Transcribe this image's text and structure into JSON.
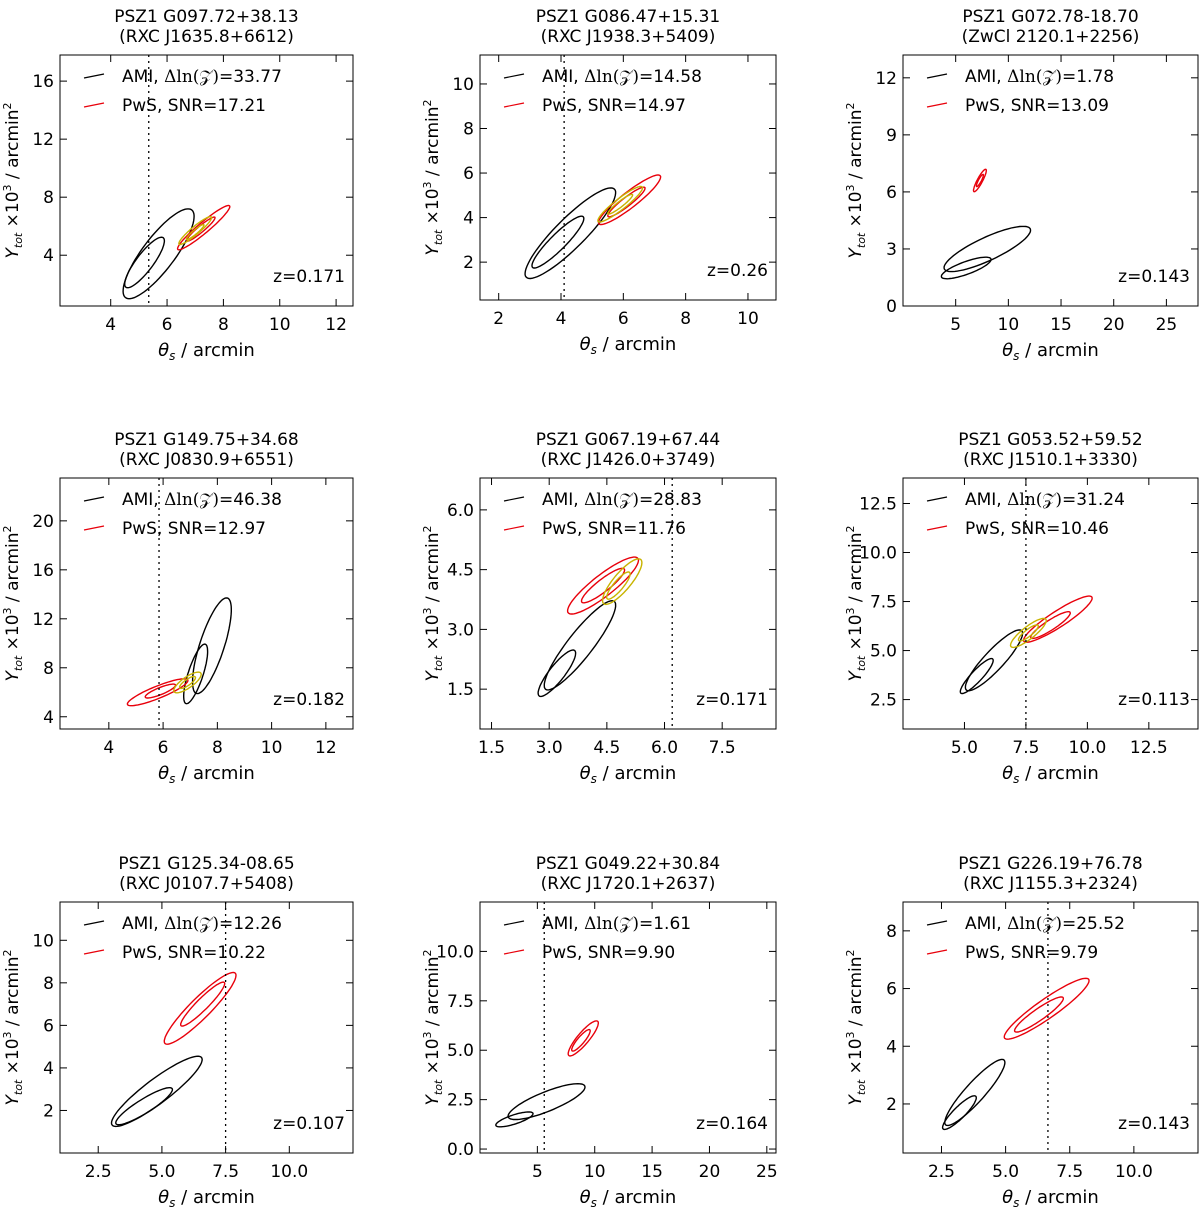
{
  "figure_caption": "",
  "chart_data": [
    {
      "type": "contour",
      "title": "PSZ1 G097.72+38.13",
      "subtitle": "(RXC J1635.8+6612)",
      "xlabel": "θs / arcmin",
      "ylabel_main": "Y",
      "ylabel_sub": "tot",
      "ylabel_rest": " ×10",
      "ylabel_exp": "3",
      "ylabel_units": " / arcmin",
      "ylabel_units_exp": "2",
      "xlim": [
        2.2,
        12.6
      ],
      "ylim": [
        0.5,
        17.8
      ],
      "xticks": [
        4,
        6,
        8,
        10,
        12
      ],
      "xtick_labels": [
        "4",
        "6",
        "8",
        "10",
        "12"
      ],
      "yticks": [
        4,
        8,
        12,
        16
      ],
      "ytick_labels": [
        "4",
        "8",
        "12",
        "16"
      ],
      "vline": 5.35,
      "legend": {
        "ami_label": "AMI, ",
        "ami_stat": "Δln(𝒵)",
        "ami_value": "=33.77",
        "pws_label": "PwS, SNR=17.21"
      },
      "redshift_label": "z=0.171",
      "contours": [
        {
          "color": "black",
          "cx": 5.7,
          "cy": 4.1,
          "a": 3.9,
          "b": 1.15,
          "angle": 53
        },
        {
          "color": "black",
          "cx": 5.2,
          "cy": 3.5,
          "a": 2.2,
          "b": 0.6,
          "angle": 53
        },
        {
          "color": "red",
          "cx": 7.3,
          "cy": 5.9,
          "a": 2.4,
          "b": 0.38,
          "angle": 40
        },
        {
          "color": "red",
          "cx": 7.2,
          "cy": 5.8,
          "a": 1.3,
          "b": 0.22,
          "angle": 40
        },
        {
          "color": "olive",
          "cx": 7.0,
          "cy": 5.7,
          "a": 1.5,
          "b": 0.28,
          "angle": 40
        },
        {
          "color": "olive",
          "cx": 7.0,
          "cy": 5.6,
          "a": 0.8,
          "b": 0.15,
          "angle": 40
        }
      ]
    },
    {
      "type": "contour",
      "title": "PSZ1 G086.47+15.31",
      "subtitle": "(RXC J1938.3+5409)",
      "xlabel": "θs / arcmin",
      "ylabel_main": "Y",
      "ylabel_sub": "tot",
      "ylabel_rest": " ×10",
      "ylabel_exp": "3",
      "ylabel_units": " / arcmin",
      "ylabel_units_exp": "2",
      "xlim": [
        1.4,
        10.9
      ],
      "ylim": [
        0.3,
        11.3
      ],
      "xticks": [
        2,
        4,
        6,
        8,
        10
      ],
      "xtick_labels": [
        "2",
        "4",
        "6",
        "8",
        "10"
      ],
      "yticks": [
        2,
        4,
        6,
        8,
        10
      ],
      "ytick_labels": [
        "2",
        "4",
        "6",
        "8",
        "10"
      ],
      "vline": 4.1,
      "legend": {
        "ami_label": "AMI, ",
        "ami_stat": "Δln(𝒵)",
        "ami_value": "=14.58",
        "pws_label": "PwS, SNR=14.97"
      },
      "redshift_label": "z=0.26",
      "contours": [
        {
          "color": "black",
          "cx": 4.3,
          "cy": 3.3,
          "a": 4.0,
          "b": 0.95,
          "angle": 45
        },
        {
          "color": "black",
          "cx": 3.9,
          "cy": 2.9,
          "a": 2.3,
          "b": 0.5,
          "angle": 45
        },
        {
          "color": "red",
          "cx": 6.2,
          "cy": 4.8,
          "a": 2.5,
          "b": 0.5,
          "angle": 38
        },
        {
          "color": "red",
          "cx": 6.1,
          "cy": 4.7,
          "a": 1.5,
          "b": 0.28,
          "angle": 38
        },
        {
          "color": "olive",
          "cx": 5.9,
          "cy": 4.6,
          "a": 1.8,
          "b": 0.35,
          "angle": 38
        },
        {
          "color": "olive",
          "cx": 5.9,
          "cy": 4.6,
          "a": 1.0,
          "b": 0.18,
          "angle": 38
        }
      ]
    },
    {
      "type": "contour",
      "title": "PSZ1 G072.78-18.70",
      "subtitle": "(ZwCl 2120.1+2256)",
      "xlabel": "θs / arcmin",
      "ylabel_main": "Y",
      "ylabel_sub": "tot",
      "ylabel_rest": " ×10",
      "ylabel_exp": "3",
      "ylabel_units": " / arcmin",
      "ylabel_units_exp": "2",
      "xlim": [
        0,
        28
      ],
      "ylim": [
        0,
        13.2
      ],
      "xticks": [
        5,
        10,
        15,
        20,
        25
      ],
      "xtick_labels": [
        "5",
        "10",
        "15",
        "20",
        "25"
      ],
      "yticks": [
        0,
        3,
        6,
        9,
        12
      ],
      "ytick_labels": [
        "0",
        "3",
        "6",
        "9",
        "12"
      ],
      "vline": null,
      "legend": {
        "ami_label": "AMI, ",
        "ami_stat": "Δln(𝒵)",
        "ami_value": "=1.78",
        "pws_label": "PwS, SNR=13.09"
      },
      "redshift_label": "z=0.143",
      "contours": [
        {
          "color": "black",
          "cx": 8.0,
          "cy": 3.0,
          "a": 9.0,
          "b": 2.2,
          "angle": 25
        },
        {
          "color": "black",
          "cx": 6.0,
          "cy": 2.0,
          "a": 5.0,
          "b": 1.2,
          "angle": 20
        },
        {
          "color": "red",
          "cx": 7.3,
          "cy": 6.6,
          "a": 2.4,
          "b": 0.5,
          "angle": 62
        },
        {
          "color": "red",
          "cx": 7.3,
          "cy": 6.6,
          "a": 1.3,
          "b": 0.28,
          "angle": 62
        }
      ]
    },
    {
      "type": "contour",
      "title": "PSZ1 G149.75+34.68",
      "subtitle": "(RXC J0830.9+6551)",
      "xlabel": "θs / arcmin",
      "ylabel_main": "Y",
      "ylabel_sub": "tot",
      "ylabel_rest": " ×10",
      "ylabel_exp": "3",
      "ylabel_units": " / arcmin",
      "ylabel_units_exp": "2",
      "xlim": [
        2.2,
        13.0
      ],
      "ylim": [
        3.0,
        23.5
      ],
      "xticks": [
        4,
        6,
        8,
        10,
        12
      ],
      "xtick_labels": [
        "4",
        "6",
        "8",
        "10",
        "12"
      ],
      "yticks": [
        4,
        8,
        12,
        16,
        20
      ],
      "ytick_labels": [
        "4",
        "8",
        "12",
        "16",
        "20"
      ],
      "vline": 5.85,
      "legend": {
        "ami_label": "AMI, ",
        "ami_stat": "Δln(𝒵)",
        "ami_value": "=46.38",
        "pws_label": "PwS, SNR=12.97"
      },
      "redshift_label": "z=0.182",
      "contours": [
        {
          "color": "black",
          "cx": 7.8,
          "cy": 9.8,
          "a": 3.7,
          "b": 0.9,
          "angle": 72
        },
        {
          "color": "black",
          "cx": 7.2,
          "cy": 7.5,
          "a": 2.3,
          "b": 0.55,
          "angle": 72
        },
        {
          "color": "red",
          "cx": 5.8,
          "cy": 6.0,
          "a": 2.4,
          "b": 0.45,
          "angle": 22
        },
        {
          "color": "red",
          "cx": 5.9,
          "cy": 6.1,
          "a": 1.2,
          "b": 0.26,
          "angle": 22
        },
        {
          "color": "olive",
          "cx": 6.9,
          "cy": 6.8,
          "a": 1.2,
          "b": 0.4,
          "angle": 35
        },
        {
          "color": "olive",
          "cx": 6.9,
          "cy": 6.8,
          "a": 0.7,
          "b": 0.22,
          "angle": 35
        }
      ]
    },
    {
      "type": "contour",
      "title": "PSZ1 G067.19+67.44",
      "subtitle": "(RXC J1426.0+3749)",
      "xlabel": "θs / arcmin",
      "ylabel_main": "Y",
      "ylabel_sub": "tot",
      "ylabel_rest": " ×10",
      "ylabel_exp": "3",
      "ylabel_units": " / arcmin",
      "ylabel_units_exp": "2",
      "xlim": [
        1.2,
        8.9
      ],
      "ylim": [
        0.5,
        6.8
      ],
      "xticks": [
        1.5,
        3.0,
        4.5,
        6.0,
        7.5
      ],
      "xtick_labels": [
        "1.5",
        "3.0",
        "4.5",
        "6.0",
        "7.5"
      ],
      "yticks": [
        1.5,
        3.0,
        4.5,
        6.0
      ],
      "ytick_labels": [
        "1.5",
        "3.0",
        "4.5",
        "6.0"
      ],
      "vline": 6.2,
      "legend": {
        "ami_label": "AMI, ",
        "ami_stat": "Δln(𝒵)",
        "ami_value": "=28.83",
        "pws_label": "PwS, SNR=11.76"
      },
      "redshift_label": "z=0.171",
      "contours": [
        {
          "color": "black",
          "cx": 3.8,
          "cy": 2.6,
          "a": 2.9,
          "b": 0.65,
          "angle": 52
        },
        {
          "color": "black",
          "cx": 3.2,
          "cy": 1.9,
          "a": 1.5,
          "b": 0.4,
          "angle": 52
        },
        {
          "color": "red",
          "cx": 4.4,
          "cy": 4.1,
          "a": 2.3,
          "b": 0.55,
          "angle": 38
        },
        {
          "color": "red",
          "cx": 4.4,
          "cy": 4.1,
          "a": 1.4,
          "b": 0.32,
          "angle": 38
        },
        {
          "color": "olive",
          "cx": 4.9,
          "cy": 4.2,
          "a": 1.5,
          "b": 0.45,
          "angle": 50
        },
        {
          "color": "olive",
          "cx": 4.8,
          "cy": 4.1,
          "a": 0.9,
          "b": 0.25,
          "angle": 50
        }
      ]
    },
    {
      "type": "contour",
      "title": "PSZ1 G053.52+59.52",
      "subtitle": "(RXC J1510.1+3330)",
      "xlabel": "θs / arcmin",
      "ylabel_main": "Y",
      "ylabel_sub": "tot",
      "ylabel_rest": " ×10",
      "ylabel_exp": "3",
      "ylabel_units": " / arcmin",
      "ylabel_units_exp": "2",
      "xlim": [
        2.5,
        14.5
      ],
      "ylim": [
        1.0,
        13.8
      ],
      "xticks": [
        5.0,
        7.5,
        10.0,
        12.5
      ],
      "xtick_labels": [
        "5.0",
        "7.5",
        "10.0",
        "12.5"
      ],
      "yticks": [
        2.5,
        5.0,
        7.5,
        10.0,
        12.5
      ],
      "ytick_labels": [
        "2.5",
        "5.0",
        "7.5",
        "10.0",
        "12.5"
      ],
      "vline": 7.5,
      "legend": {
        "ami_label": "AMI, ",
        "ami_stat": "Δln(𝒵)",
        "ami_value": "=31.24",
        "pws_label": "PwS, SNR=10.46"
      },
      "redshift_label": "z=0.113",
      "contours": [
        {
          "color": "black",
          "cx": 6.2,
          "cy": 4.5,
          "a": 3.3,
          "b": 0.8,
          "angle": 47
        },
        {
          "color": "black",
          "cx": 5.5,
          "cy": 3.7,
          "a": 1.9,
          "b": 0.45,
          "angle": 47
        },
        {
          "color": "red",
          "cx": 8.8,
          "cy": 6.6,
          "a": 3.3,
          "b": 0.65,
          "angle": 33
        },
        {
          "color": "red",
          "cx": 8.5,
          "cy": 6.3,
          "a": 1.9,
          "b": 0.4,
          "angle": 33
        },
        {
          "color": "olive",
          "cx": 7.6,
          "cy": 5.9,
          "a": 1.8,
          "b": 0.5,
          "angle": 38
        },
        {
          "color": "olive",
          "cx": 7.6,
          "cy": 5.9,
          "a": 1.0,
          "b": 0.28,
          "angle": 38
        }
      ]
    },
    {
      "type": "contour",
      "title": "PSZ1 G125.34-08.65",
      "subtitle": "(RXC J0107.7+5408)",
      "xlabel": "θs / arcmin",
      "ylabel_main": "Y",
      "ylabel_sub": "tot",
      "ylabel_rest": " ×10",
      "ylabel_exp": "3",
      "ylabel_units": " / arcmin",
      "ylabel_units_exp": "2",
      "xlim": [
        1.0,
        12.5
      ],
      "ylim": [
        0.0,
        11.8
      ],
      "xticks": [
        2.5,
        5.0,
        7.5,
        10.0
      ],
      "xtick_labels": [
        "2.5",
        "5.0",
        "7.5",
        "10.0"
      ],
      "yticks": [
        2,
        4,
        6,
        8,
        10
      ],
      "ytick_labels": [
        "2",
        "4",
        "6",
        "8",
        "10"
      ],
      "vline": 7.5,
      "legend": {
        "ami_label": "AMI, ",
        "ami_stat": "Δln(𝒵)",
        "ami_value": "=12.26",
        "pws_label": "PwS, SNR=10.22"
      },
      "redshift_label": "z=0.107",
      "contours": [
        {
          "color": "black",
          "cx": 4.8,
          "cy": 2.9,
          "a": 4.4,
          "b": 0.95,
          "angle": 37
        },
        {
          "color": "black",
          "cx": 4.3,
          "cy": 2.2,
          "a": 2.6,
          "b": 0.55,
          "angle": 32
        },
        {
          "color": "red",
          "cx": 6.5,
          "cy": 6.8,
          "a": 3.9,
          "b": 0.8,
          "angle": 45
        },
        {
          "color": "red",
          "cx": 6.6,
          "cy": 7.0,
          "a": 2.4,
          "b": 0.45,
          "angle": 45
        }
      ]
    },
    {
      "type": "contour",
      "title": "PSZ1 G049.22+30.84",
      "subtitle": "(RXC J1720.1+2637)",
      "xlabel": "θs / arcmin",
      "ylabel_main": "Y",
      "ylabel_sub": "tot",
      "ylabel_rest": " ×10",
      "ylabel_exp": "3",
      "ylabel_units": " / arcmin",
      "ylabel_units_exp": "2",
      "xlim": [
        0,
        25.8
      ],
      "ylim": [
        -0.2,
        12.5
      ],
      "xticks": [
        5,
        10,
        15,
        20,
        25
      ],
      "xtick_labels": [
        "5",
        "10",
        "15",
        "20",
        "25"
      ],
      "yticks": [
        0.0,
        2.5,
        5.0,
        7.5,
        10.0
      ],
      "ytick_labels": [
        "0.0",
        "2.5",
        "5.0",
        "7.5",
        "10.0"
      ],
      "vline": 5.6,
      "legend": {
        "ami_label": "AMI, ",
        "ami_stat": "Δln(𝒵)",
        "ami_value": "=1.61",
        "pws_label": "PwS, SNR=9.90"
      },
      "redshift_label": "z=0.164",
      "contours": [
        {
          "color": "black",
          "cx": 5.8,
          "cy": 2.4,
          "a": 7.2,
          "b": 1.7,
          "angle": 22
        },
        {
          "color": "black",
          "cx": 3.0,
          "cy": 1.5,
          "a": 3.4,
          "b": 0.8,
          "angle": 18
        },
        {
          "color": "red",
          "cx": 9.0,
          "cy": 5.6,
          "a": 3.9,
          "b": 1.0,
          "angle": 50
        },
        {
          "color": "red",
          "cx": 8.8,
          "cy": 5.5,
          "a": 2.4,
          "b": 0.6,
          "angle": 50
        }
      ]
    },
    {
      "type": "contour",
      "title": "PSZ1 G226.19+76.78",
      "subtitle": "(RXC J1155.3+2324)",
      "xlabel": "θs / arcmin",
      "ylabel_main": "Y",
      "ylabel_sub": "tot",
      "ylabel_rest": " ×10",
      "ylabel_exp": "3",
      "ylabel_units": " / arcmin",
      "ylabel_units_exp": "2",
      "xlim": [
        1.0,
        12.5
      ],
      "ylim": [
        0.3,
        9.0
      ],
      "xticks": [
        2.5,
        5.0,
        7.5,
        10.0
      ],
      "xtick_labels": [
        "2.5",
        "5.0",
        "7.5",
        "10.0"
      ],
      "yticks": [
        2,
        4,
        6,
        8
      ],
      "ytick_labels": [
        "2",
        "4",
        "6",
        "8"
      ],
      "vline": 6.65,
      "legend": {
        "ami_label": "AMI, ",
        "ami_stat": "Δln(𝒵)",
        "ami_value": "=25.52",
        "pws_label": "PwS, SNR=9.79"
      },
      "redshift_label": "z=0.143",
      "contours": [
        {
          "color": "black",
          "cx": 3.8,
          "cy": 2.4,
          "a": 3.4,
          "b": 0.75,
          "angle": 48
        },
        {
          "color": "black",
          "cx": 3.2,
          "cy": 1.7,
          "a": 1.8,
          "b": 0.45,
          "angle": 45
        },
        {
          "color": "red",
          "cx": 6.6,
          "cy": 5.3,
          "a": 4.0,
          "b": 0.75,
          "angle": 35
        },
        {
          "color": "red",
          "cx": 6.3,
          "cy": 5.1,
          "a": 2.3,
          "b": 0.45,
          "angle": 35
        }
      ]
    }
  ]
}
